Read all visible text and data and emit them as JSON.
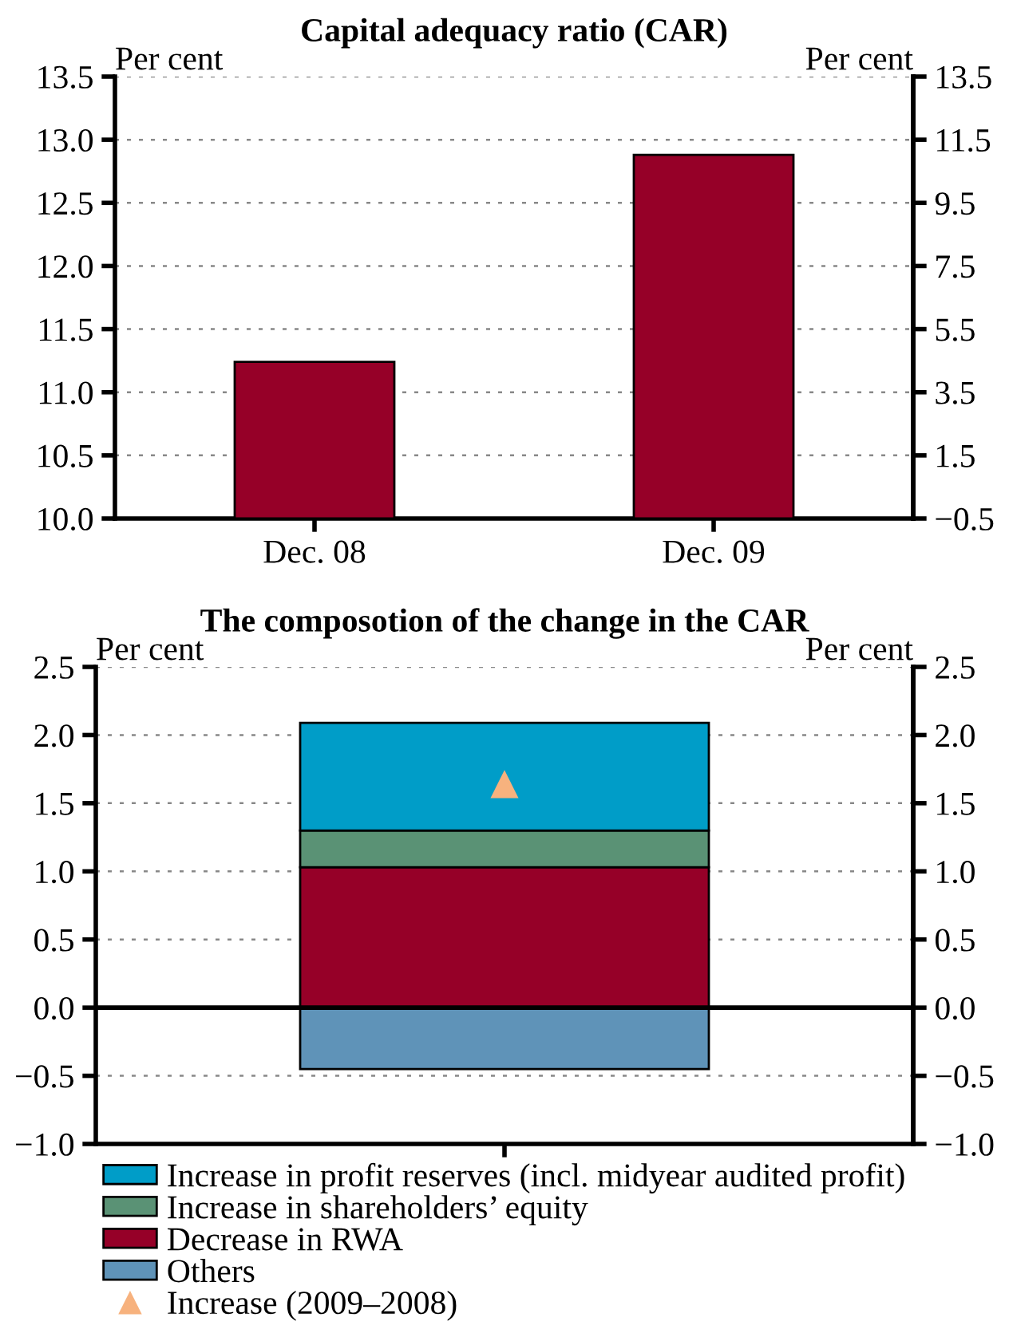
{
  "chart_data": [
    {
      "type": "bar",
      "title": "Capital adequacy ratio (CAR)",
      "ylabel": "Per cent",
      "y2label": "Per cent",
      "categories": [
        "Dec. 08",
        "Dec. 09"
      ],
      "series": [
        {
          "color": "#960028",
          "values": [
            11.24,
            12.88
          ]
        }
      ],
      "ylim": [
        10.0,
        13.5
      ],
      "yticks": [
        {
          "value": 10.0,
          "label": "10.0"
        },
        {
          "value": 10.5,
          "label": "10.5"
        },
        {
          "value": 11.0,
          "label": "11.0"
        },
        {
          "value": 11.5,
          "label": "11.5"
        },
        {
          "value": 12.0,
          "label": "12.0"
        },
        {
          "value": 12.5,
          "label": "12.5"
        },
        {
          "value": 13.0,
          "label": "13.0"
        },
        {
          "value": 13.5,
          "label": "13.5"
        }
      ],
      "y2lim": [
        -0.5,
        13.5
      ],
      "y2ticks": [
        {
          "value": -0.5,
          "label": "−0.5"
        },
        1.5,
        3.5,
        5.5,
        7.5,
        9.5,
        11.5,
        13.5
      ],
      "grid": "y",
      "legend": false
    },
    {
      "type": "bar",
      "stacked": true,
      "title": "The composotion of the change in the CAR",
      "ylabel": "Per cent",
      "y2label": "Per cent",
      "categories": [
        null
      ],
      "series": [
        {
          "name": "Decrease in RWA",
          "color": "#960028",
          "values": [
            1.03
          ]
        },
        {
          "name": "Increase in shareholders’ equity",
          "color": "#5a9275",
          "values": [
            0.27
          ]
        },
        {
          "name": "Increase in profit reserves (incl. midyear audited profit)",
          "color": "#009dc8",
          "values": [
            0.79
          ]
        },
        {
          "name": "Others",
          "color": "#5f93b8",
          "values": [
            -0.45
          ]
        },
        {
          "name": "Increase (2009–2008)",
          "type": "scatter",
          "marker": "triangle",
          "color": "#f7b27e",
          "values": [
            1.64
          ]
        }
      ],
      "ylim": [
        -1.0,
        2.5
      ],
      "yticks": [
        {
          "value": -1.0,
          "label": "−1.0"
        },
        {
          "value": -0.5,
          "label": "−0.5"
        },
        {
          "value": 0.0,
          "label": "0.0"
        },
        {
          "value": 0.5,
          "label": "0.5"
        },
        {
          "value": 1.0,
          "label": "1.0"
        },
        {
          "value": 1.5,
          "label": "1.5"
        },
        {
          "value": 2.0,
          "label": "2.0"
        },
        {
          "value": 2.5,
          "label": "2.5"
        }
      ],
      "y2lim": [
        -1.0,
        2.5
      ],
      "y2ticks": [
        {
          "value": -1.0,
          "label": "−1.0"
        },
        {
          "value": -0.5,
          "label": "−0.5"
        },
        {
          "value": 0.0,
          "label": "0.0"
        },
        {
          "value": 0.5,
          "label": "0.5"
        },
        {
          "value": 1.0,
          "label": "1.0"
        },
        {
          "value": 1.5,
          "label": "1.5"
        },
        {
          "value": 2.0,
          "label": "2.0"
        },
        {
          "value": 2.5,
          "label": "2.5"
        }
      ],
      "ref_lines": [
        {
          "axis": "y",
          "value": 0.0,
          "color": "#000000"
        }
      ],
      "grid": "y",
      "legend": "bottom"
    }
  ]
}
